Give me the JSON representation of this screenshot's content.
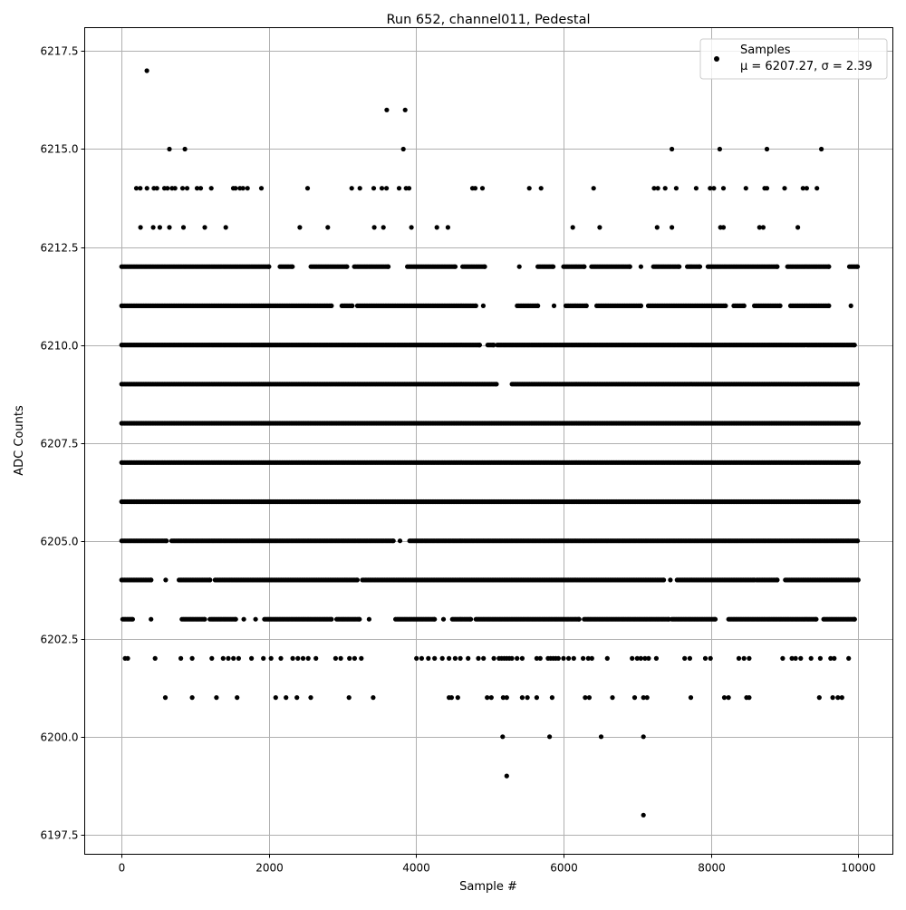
{
  "chart_data": {
    "type": "scatter",
    "title": "Run 652, channel011, Pedestal",
    "xlabel": "Sample #",
    "ylabel": "ADC Counts",
    "xlim": [
      -500,
      10470
    ],
    "ylim": [
      6197.0,
      6218.1
    ],
    "xticks": [
      0,
      2000,
      4000,
      6000,
      8000,
      10000
    ],
    "yticks": [
      6197.5,
      6200.0,
      6202.5,
      6205.0,
      6207.5,
      6210.0,
      6212.5,
      6215.0,
      6217.5
    ],
    "grid": true,
    "marker_color": "#000000",
    "grid_color": "#b0b0b0",
    "legend": {
      "placement": "top-right",
      "series_name": "Samples",
      "stats_text": "μ = 6207.27, σ = 2.39"
    },
    "levels_continuous": [
      {
        "y": 6212,
        "x_ranges": [
          [
            0,
            2000
          ],
          [
            2150,
            2320
          ],
          [
            2570,
            3060
          ],
          [
            3160,
            3620
          ],
          [
            3880,
            4530
          ],
          [
            4630,
            4930
          ],
          [
            5400,
            5400
          ],
          [
            5650,
            5860
          ],
          [
            6000,
            6280
          ],
          [
            6380,
            6900
          ],
          [
            7050,
            7050
          ],
          [
            7220,
            7570
          ],
          [
            7680,
            7850
          ],
          [
            7960,
            8900
          ],
          [
            9040,
            9600
          ],
          [
            9880,
            9990
          ]
        ]
      },
      {
        "y": 6211,
        "x_ranges": [
          [
            0,
            2850
          ],
          [
            2990,
            3130
          ],
          [
            3200,
            4810
          ],
          [
            4910,
            4910
          ],
          [
            5370,
            5650
          ],
          [
            5870,
            5870
          ],
          [
            6030,
            6310
          ],
          [
            6450,
            7050
          ],
          [
            7150,
            8200
          ],
          [
            8310,
            8450
          ],
          [
            8590,
            8940
          ],
          [
            9080,
            9600
          ],
          [
            9900,
            9900
          ]
        ]
      },
      {
        "y": 6210,
        "x_ranges": [
          [
            0,
            4860
          ],
          [
            4970,
            5050
          ],
          [
            5100,
            9950
          ]
        ]
      },
      {
        "y": 6209,
        "x_ranges": [
          [
            0,
            5090
          ],
          [
            5300,
            9990
          ]
        ]
      },
      {
        "y": 6208,
        "x_ranges": [
          [
            0,
            10000
          ]
        ]
      },
      {
        "y": 6207,
        "x_ranges": [
          [
            0,
            10000
          ]
        ]
      },
      {
        "y": 6206,
        "x_ranges": [
          [
            0,
            10000
          ]
        ]
      },
      {
        "y": 6205,
        "x_ranges": [
          [
            0,
            610
          ],
          [
            680,
            3690
          ],
          [
            3780,
            3780
          ],
          [
            3910,
            9990
          ]
        ]
      },
      {
        "y": 6204,
        "x_ranges": [
          [
            0,
            400
          ],
          [
            600,
            600
          ],
          [
            780,
            1200
          ],
          [
            1270,
            3200
          ],
          [
            3270,
            7360
          ],
          [
            7450,
            7450
          ],
          [
            7540,
            8590
          ],
          [
            8620,
            8900
          ],
          [
            9010,
            10000
          ]
        ]
      },
      {
        "y": 6203,
        "x_ranges": [
          [
            15,
            150
          ],
          [
            400,
            400
          ],
          [
            820,
            1130
          ],
          [
            1200,
            1550
          ],
          [
            1660,
            1660
          ],
          [
            1820,
            1820
          ],
          [
            1940,
            2850
          ],
          [
            2920,
            3230
          ],
          [
            3360,
            3360
          ],
          [
            3720,
            4250
          ],
          [
            4370,
            4370
          ],
          [
            4490,
            4740
          ],
          [
            4810,
            6210
          ],
          [
            6280,
            7430
          ],
          [
            7470,
            8060
          ],
          [
            8240,
            9430
          ],
          [
            9530,
            9950
          ]
        ]
      }
    ],
    "points_sparse": [
      {
        "y": 6217,
        "x": [
          344
        ]
      },
      {
        "y": 6216,
        "x": [
          3600,
          3850
        ]
      },
      {
        "y": 6215,
        "x": [
          650,
          860,
          3825,
          7470,
          8120,
          8760,
          9500
        ]
      },
      {
        "y": 6214,
        "x": [
          201,
          254,
          345,
          439,
          480,
          582,
          623,
          685,
          726,
          828,
          890,
          1025,
          1074,
          1218,
          1517,
          1546,
          1607,
          1648,
          1710,
          1898,
          2525,
          3124,
          3235,
          3423,
          3534,
          3596,
          3768,
          3862,
          3903,
          4764,
          4800,
          4899,
          5535,
          5695,
          6408,
          7230,
          7280,
          7380,
          7530,
          7800,
          7990,
          8040,
          8170,
          8475,
          8730,
          8760,
          9000,
          9250,
          9300,
          9440
        ]
      },
      {
        "y": 6213,
        "x": [
          258,
          430,
          520,
          650,
          840,
          1130,
          1415,
          2420,
          2800,
          3430,
          3555,
          3935,
          4280,
          4430,
          6125,
          6490,
          7270,
          7470,
          8130,
          8170,
          8660,
          8710,
          9180
        ]
      },
      {
        "y": 6202,
        "x": [
          49,
          84,
          455,
          805,
          959,
          1225,
          1379,
          1449,
          1519,
          1589,
          1764,
          1925,
          2030,
          2163,
          2324,
          2394,
          2464,
          2534,
          2639,
          2905,
          2975,
          3094,
          3164,
          3255,
          4004,
          4074,
          4165,
          4249,
          4354,
          4445,
          4529,
          4599,
          4704,
          4844,
          4914,
          5054,
          5124,
          5159,
          5194,
          5229,
          5264,
          5299,
          5369,
          5439,
          5635,
          5684,
          5789,
          5824,
          5859,
          5894,
          5929,
          5999,
          6069,
          6139,
          6265,
          6335,
          6384,
          6594,
          6930,
          7000,
          7049,
          7105,
          7154,
          7259,
          7644,
          7714,
          7924,
          7994,
          8379,
          8449,
          8519,
          8974,
          9100,
          9149,
          9219,
          9359,
          9485,
          9625,
          9674,
          9870
        ]
      },
      {
        "y": 6201,
        "x": [
          595,
          959,
          1288,
          1568,
          2093,
          2233,
          2380,
          2569,
          3087,
          3416,
          4445,
          4480,
          4564,
          4963,
          5019,
          5180,
          5229,
          5439,
          5509,
          5635,
          5845,
          6293,
          6349,
          6664,
          6965,
          7084,
          7133,
          7728,
          8183,
          8239,
          8484,
          8519,
          9471,
          9653,
          9723,
          9779
        ]
      },
      {
        "y": 6200,
        "x": [
          5173,
          5810,
          6510,
          7084
        ]
      },
      {
        "y": 6199,
        "x": [
          5229
        ]
      },
      {
        "y": 6198,
        "x": [
          7084
        ]
      }
    ]
  }
}
